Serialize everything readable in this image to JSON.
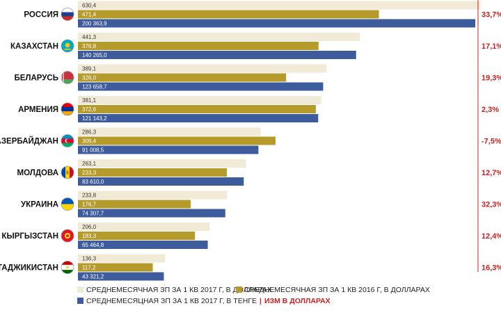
{
  "chart_data": {
    "type": "bar",
    "orientation": "horizontal",
    "categories": [
      "РОССИЯ",
      "КАЗАХСТАН",
      "БЕЛАРУСЬ",
      "АРМЕНИЯ",
      "АЗЕРБАЙДЖАН",
      "МОЛДОВА",
      "УКРАИНА",
      "КЫРГЫЗСТАН",
      "ТАДЖИКИСТАН"
    ],
    "series": [
      {
        "name": "СРЕДНЕМЕСЯЧНАЯ ЗП ЗА 1 КВ 2017 Г, В ДОЛЛАРАХ",
        "color": "#f0ead6",
        "values": [
          630.4,
          441.3,
          389.1,
          381.1,
          286.3,
          263.1,
          233.8,
          206.0,
          136.3
        ],
        "labels": [
          "630,4",
          "441,3",
          "389,1",
          "381,1",
          "286,3",
          "263,1",
          "233,8",
          "206,0",
          "136,3"
        ]
      },
      {
        "name": "СРЕДНЕМЕСЯЧНАЯ ЗП ЗА 1 КВ 2016 Г, В ДОЛЛАРАХ",
        "color": "#b49b2c",
        "values": [
          471.4,
          376.8,
          326.0,
          372.6,
          309.4,
          233.3,
          176.7,
          183.3,
          117.2
        ],
        "labels": [
          "471,4",
          "376,8",
          "326,0",
          "372,6",
          "309,4",
          "233,3",
          "176,7",
          "183,3",
          "117,2"
        ]
      },
      {
        "name": "СРЕДНЕМЕСЯЦНАЯ ЗП ЗА 1 КВ 2017 Г, В ТЕНГЕ",
        "color": "#3e5b9c",
        "values": [
          200363.9,
          140265.0,
          123658.7,
          121143.2,
          91008.5,
          83610.0,
          74307.7,
          65464.8,
          43321.2
        ],
        "labels": [
          "200 363,9",
          "140 265,0",
          "123 658,7",
          "121 143,2",
          "91 008,5",
          "83 610,0",
          "74 307,7",
          "65 464,8",
          "43 321,2"
        ]
      }
    ],
    "change": {
      "name": "ИЗМ В ДОЛЛАРАХ",
      "color": "#cc1f1f",
      "values": [
        33.7,
        17.1,
        19.3,
        2.3,
        -7.5,
        12.7,
        32.3,
        12.4,
        16.3
      ],
      "labels": [
        "33,7%",
        "17,1%",
        "19,3%",
        "2,3%",
        "-7,5%",
        "12,7%",
        "32,3%",
        "12,4%",
        "16,3%"
      ]
    },
    "flags": [
      "russia-flag-icon",
      "kazakhstan-flag-icon",
      "belarus-flag-icon",
      "armenia-flag-icon",
      "azerbaijan-flag-icon",
      "moldova-flag-icon",
      "ukraine-flag-icon",
      "kyrgyzstan-flag-icon",
      "tajikistan-flag-icon"
    ],
    "legend": {
      "items": [
        {
          "label": "СРЕДНЕМЕСЯЧНАЯ ЗП ЗА 1 КВ 2017 Г, В ДОЛЛАРАХ",
          "color": "#f0ead6"
        },
        {
          "label": "СРЕДНЕМЕСЯЧНАЯ ЗП ЗА 1 КВ 2016 Г, В ДОЛЛАРАХ",
          "color": "#b49b2c"
        },
        {
          "label": "СРЕДНЕМЕСЯЦНАЯ ЗП ЗА 1 КВ 2017 Г, В ТЕНГЕ",
          "color": "#3e5b9c"
        }
      ],
      "separator": "|",
      "change_label": "ИЗМ В ДОЛЛАРАХ"
    },
    "divider_color": "#cc1f1f",
    "xlim_usd": [
      0,
      660
    ],
    "xlim_kzt": [
      0,
      203000
    ],
    "grid": false
  }
}
